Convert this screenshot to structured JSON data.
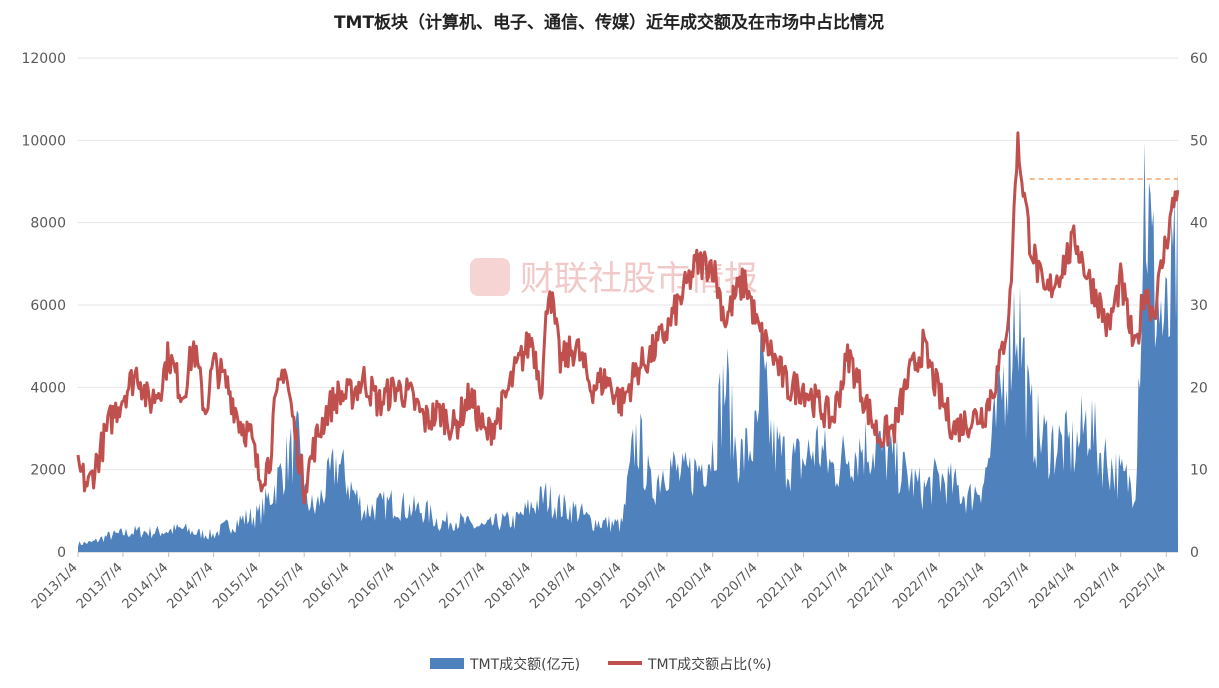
{
  "chart_data": {
    "type": "area",
    "title": "TMT板块（计算机、电子、通信、传媒）近年成交额及在市场中占比情况",
    "watermark": "财联社股市情报",
    "x_ticks": [
      "2013/1/4",
      "2013/7/4",
      "2014/1/4",
      "2014/7/4",
      "2015/1/4",
      "2015/7/4",
      "2016/1/4",
      "2016/7/4",
      "2017/1/4",
      "2017/7/4",
      "2018/1/4",
      "2018/7/4",
      "2019/1/4",
      "2019/7/4",
      "2020/1/4",
      "2020/7/4",
      "2021/1/4",
      "2021/7/4",
      "2022/1/4",
      "2022/7/4",
      "2023/1/4",
      "2023/7/4",
      "2024/1/4",
      "2024/7/4",
      "2025/1/4"
    ],
    "y_left": {
      "min": 0,
      "max": 12000,
      "ticks": [
        0,
        2000,
        4000,
        6000,
        8000,
        10000,
        12000
      ]
    },
    "y_right": {
      "min": 0,
      "max": 60,
      "ticks": [
        0,
        10,
        20,
        30,
        40,
        50,
        60
      ]
    },
    "reference_line": {
      "value": 45.3,
      "from": "2023/7/4",
      "to": "2025/2/20",
      "color": "#f4a46a"
    },
    "legend": [
      "TMT成交额(亿元)",
      "TMT成交额占比(%)"
    ],
    "colors": {
      "amount": "#4f81bd",
      "share": "#c0504d"
    },
    "series": [
      {
        "name": "TMT成交额(亿元)",
        "axis": "left",
        "x": [
          "2013/1/4",
          "2013/3/1",
          "2013/5/1",
          "2013/7/4",
          "2013/9/1",
          "2013/11/1",
          "2014/1/4",
          "2014/3/1",
          "2014/5/1",
          "2014/7/4",
          "2014/9/1",
          "2014/11/1",
          "2015/1/4",
          "2015/3/1",
          "2015/5/1",
          "2015/6/10",
          "2015/7/4",
          "2015/8/15",
          "2015/10/1",
          "2015/11/15",
          "2016/1/4",
          "2016/3/1",
          "2016/5/1",
          "2016/7/4",
          "2016/9/1",
          "2016/11/1",
          "2017/1/4",
          "2017/3/1",
          "2017/5/1",
          "2017/7/4",
          "2017/9/1",
          "2017/11/1",
          "2018/1/4",
          "2018/3/1",
          "2018/5/1",
          "2018/7/4",
          "2018/9/1",
          "2018/11/1",
          "2019/1/4",
          "2019/2/25",
          "2019/3/10",
          "2019/5/1",
          "2019/7/4",
          "2019/9/1",
          "2019/11/1",
          "2020/1/4",
          "2020/2/25",
          "2020/4/1",
          "2020/5/1",
          "2020/7/4",
          "2020/7/15",
          "2020/9/1",
          "2020/11/1",
          "2021/1/4",
          "2021/3/1",
          "2021/5/1",
          "2021/7/4",
          "2021/9/1",
          "2021/11/1",
          "2022/1/4",
          "2022/3/1",
          "2022/5/1",
          "2022/7/4",
          "2022/9/1",
          "2022/11/1",
          "2023/1/4",
          "2023/3/1",
          "2023/4/15",
          "2023/5/15",
          "2023/7/4",
          "2023/9/1",
          "2023/11/1",
          "2024/1/4",
          "2024/2/28",
          "2024/4/1",
          "2024/5/15",
          "2024/7/4",
          "2024/9/1",
          "2024/10/8",
          "2024/11/15",
          "2025/1/4",
          "2025/2/20"
        ],
        "values": [
          200,
          230,
          380,
          450,
          500,
          480,
          520,
          560,
          450,
          420,
          640,
          800,
          900,
          1500,
          2300,
          2600,
          1400,
          1000,
          1600,
          2200,
          1600,
          1000,
          1100,
          1200,
          1050,
          1000,
          700,
          800,
          650,
          600,
          750,
          750,
          1100,
          1350,
          1100,
          1000,
          750,
          700,
          650,
          2700,
          2800,
          1500,
          2200,
          1800,
          2000,
          2500,
          4200,
          2600,
          2300,
          2800,
          4400,
          2600,
          2200,
          2200,
          2600,
          2000,
          2400,
          2600,
          2500,
          2200,
          1800,
          1500,
          1800,
          1600,
          1300,
          1800,
          3400,
          5200,
          6100,
          3200,
          2700,
          2600,
          2500,
          3300,
          2500,
          2200,
          1800,
          1600,
          9000,
          6500,
          5200,
          7200
        ]
      },
      {
        "name": "TMT成交额占比(%)",
        "axis": "right",
        "x": [
          "2013/1/4",
          "2013/2/15",
          "2013/4/1",
          "2013/5/15",
          "2013/7/4",
          "2013/9/1",
          "2013/10/15",
          "2013/12/1",
          "2014/1/4",
          "2014/3/1",
          "2014/4/15",
          "2014/6/1",
          "2014/7/4",
          "2014/9/1",
          "2014/10/15",
          "2014/12/1",
          "2015/1/4",
          "2015/2/15",
          "2015/3/1",
          "2015/4/15",
          "2015/5/15",
          "2015/6/10",
          "2015/7/4",
          "2015/8/15",
          "2015/10/1",
          "2015/11/15",
          "2016/1/4",
          "2016/3/1",
          "2016/5/1",
          "2016/7/4",
          "2016/9/1",
          "2016/11/1",
          "2017/1/4",
          "2017/3/1",
          "2017/5/1",
          "2017/7/4",
          "2017/9/1",
          "2017/11/1",
          "2018/1/4",
          "2018/2/15",
          "2018/3/15",
          "2018/5/1",
          "2018/7/4",
          "2018/9/1",
          "2018/11/1",
          "2019/1/4",
          "2019/3/1",
          "2019/5/1",
          "2019/7/4",
          "2019/9/1",
          "2019/11/1",
          "2020/1/4",
          "2020/2/25",
          "2020/4/1",
          "2020/5/15",
          "2020/7/4",
          "2020/9/1",
          "2020/11/1",
          "2021/1/4",
          "2021/3/1",
          "2021/5/1",
          "2021/7/4",
          "2021/9/1",
          "2021/11/1",
          "2022/1/4",
          "2022/3/1",
          "2022/5/1",
          "2022/7/4",
          "2022/9/1",
          "2022/11/1",
          "2023/1/4",
          "2023/3/1",
          "2023/4/15",
          "2023/5/15",
          "2023/7/4",
          "2023/9/1",
          "2023/11/1",
          "2024/1/4",
          "2024/2/28",
          "2024/4/1",
          "2024/5/15",
          "2024/7/4",
          "2024/9/1",
          "2024/10/8",
          "2024/11/15",
          "2025/1/4",
          "2025/2/20"
        ],
        "values": [
          10,
          8,
          12,
          16,
          19,
          22,
          18,
          20,
          24,
          19,
          25,
          17,
          23,
          20,
          16,
          14,
          9,
          11,
          16,
          23,
          17,
          12,
          8,
          13,
          17,
          19,
          19,
          21,
          18,
          20,
          19,
          16,
          17,
          15,
          19,
          14,
          17,
          22,
          26,
          20,
          33,
          23,
          25,
          20,
          21,
          18,
          22,
          24,
          27,
          31,
          35,
          35,
          28,
          31,
          33,
          27,
          24,
          20,
          20,
          18,
          16,
          24,
          19,
          14,
          15,
          21,
          25,
          19,
          15,
          16,
          17,
          22,
          30,
          50,
          38,
          31,
          34,
          38,
          33,
          31,
          27,
          33,
          24,
          32,
          29,
          38,
          45
        ]
      }
    ]
  }
}
